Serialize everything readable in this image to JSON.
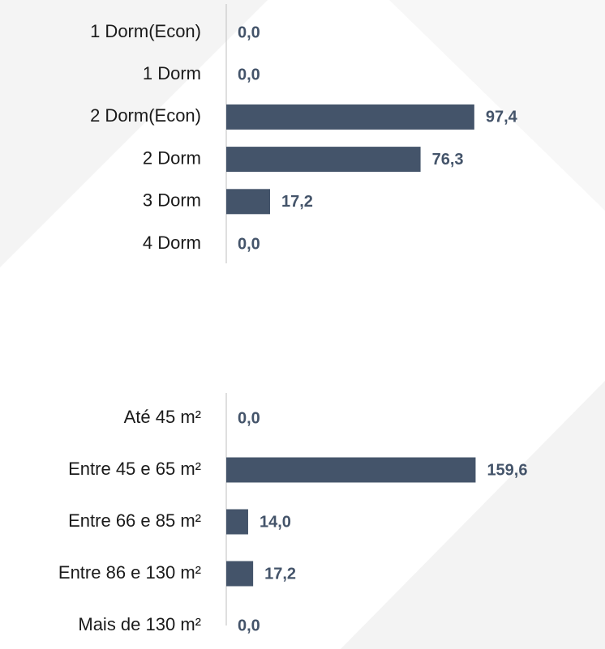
{
  "chart_data": [
    {
      "type": "barh",
      "categories": [
        "1 Dorm(Econ)",
        "1 Dorm",
        "2 Dorm(Econ)",
        "2 Dorm",
        "3 Dorm",
        "4 Dorm"
      ],
      "values": [
        0,
        0,
        97.4,
        76.3,
        17.2,
        0
      ],
      "value_labels": [
        "0,0",
        "0,0",
        "97,4",
        "76,3",
        "17,2",
        "0,0"
      ],
      "color": "#44546a",
      "xlim": [
        0,
        100
      ]
    },
    {
      "type": "barh",
      "categories": [
        "Até 45 m²",
        "Entre 45 e 65 m²",
        "Entre 66 e 85 m²",
        "Entre 86 e 130 m²",
        "Mais de 130 m²"
      ],
      "values": [
        0,
        159.6,
        14.0,
        17.2,
        0
      ],
      "value_labels": [
        "0,0",
        "159,6",
        "14,0",
        "17,2",
        "0,0"
      ],
      "color": "#44546a",
      "xlim": [
        0,
        163
      ]
    }
  ]
}
